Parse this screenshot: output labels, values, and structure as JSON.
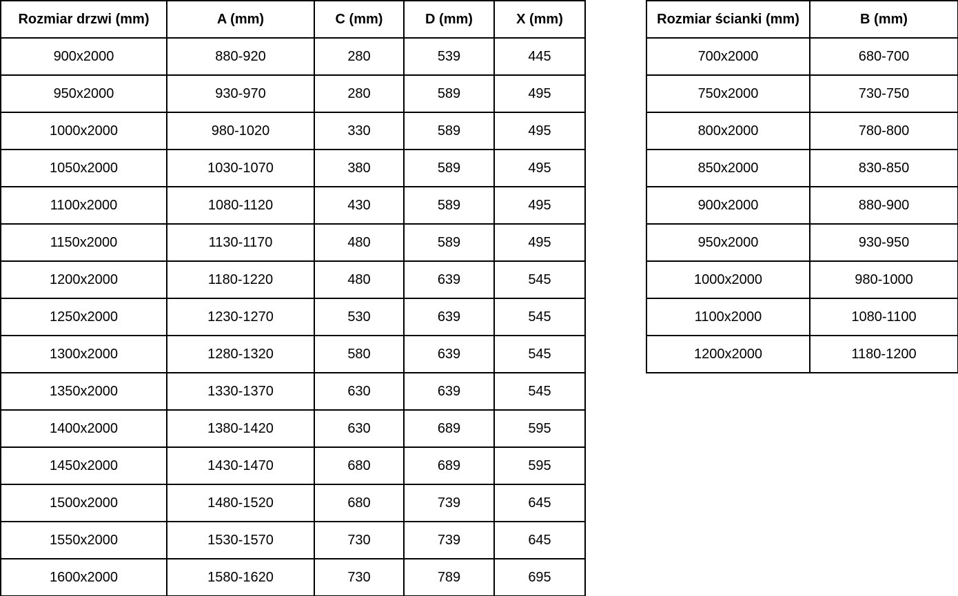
{
  "chart_data": [
    {
      "type": "table",
      "name": "door_sizes",
      "columns": [
        "Rozmiar drzwi (mm)",
        "A (mm)",
        "C (mm)",
        "D (mm)",
        "X (mm)"
      ],
      "rows": [
        [
          "900x2000",
          "880-920",
          "280",
          "539",
          "445"
        ],
        [
          "950x2000",
          "930-970",
          "280",
          "589",
          "495"
        ],
        [
          "1000x2000",
          "980-1020",
          "330",
          "589",
          "495"
        ],
        [
          "1050x2000",
          "1030-1070",
          "380",
          "589",
          "495"
        ],
        [
          "1100x2000",
          "1080-1120",
          "430",
          "589",
          "495"
        ],
        [
          "1150x2000",
          "1130-1170",
          "480",
          "589",
          "495"
        ],
        [
          "1200x2000",
          "1180-1220",
          "480",
          "639",
          "545"
        ],
        [
          "1250x2000",
          "1230-1270",
          "530",
          "639",
          "545"
        ],
        [
          "1300x2000",
          "1280-1320",
          "580",
          "639",
          "545"
        ],
        [
          "1350x2000",
          "1330-1370",
          "630",
          "639",
          "545"
        ],
        [
          "1400x2000",
          "1380-1420",
          "630",
          "689",
          "595"
        ],
        [
          "1450x2000",
          "1430-1470",
          "680",
          "689",
          "595"
        ],
        [
          "1500x2000",
          "1480-1520",
          "680",
          "739",
          "645"
        ],
        [
          "1550x2000",
          "1530-1570",
          "730",
          "739",
          "645"
        ],
        [
          "1600x2000",
          "1580-1620",
          "730",
          "789",
          "695"
        ]
      ]
    },
    {
      "type": "table",
      "name": "wall_panel_sizes",
      "columns": [
        "Rozmiar ścianki (mm)",
        "B (mm)"
      ],
      "rows": [
        [
          "700x2000",
          "680-700"
        ],
        [
          "750x2000",
          "730-750"
        ],
        [
          "800x2000",
          "780-800"
        ],
        [
          "850x2000",
          "830-850"
        ],
        [
          "900x2000",
          "880-900"
        ],
        [
          "950x2000",
          "930-950"
        ],
        [
          "1000x2000",
          "980-1000"
        ],
        [
          "1100x2000",
          "1080-1100"
        ],
        [
          "1200x2000",
          "1180-1200"
        ]
      ]
    }
  ],
  "colors": {
    "border": "#000000",
    "text": "#000000",
    "background": "#ffffff"
  }
}
